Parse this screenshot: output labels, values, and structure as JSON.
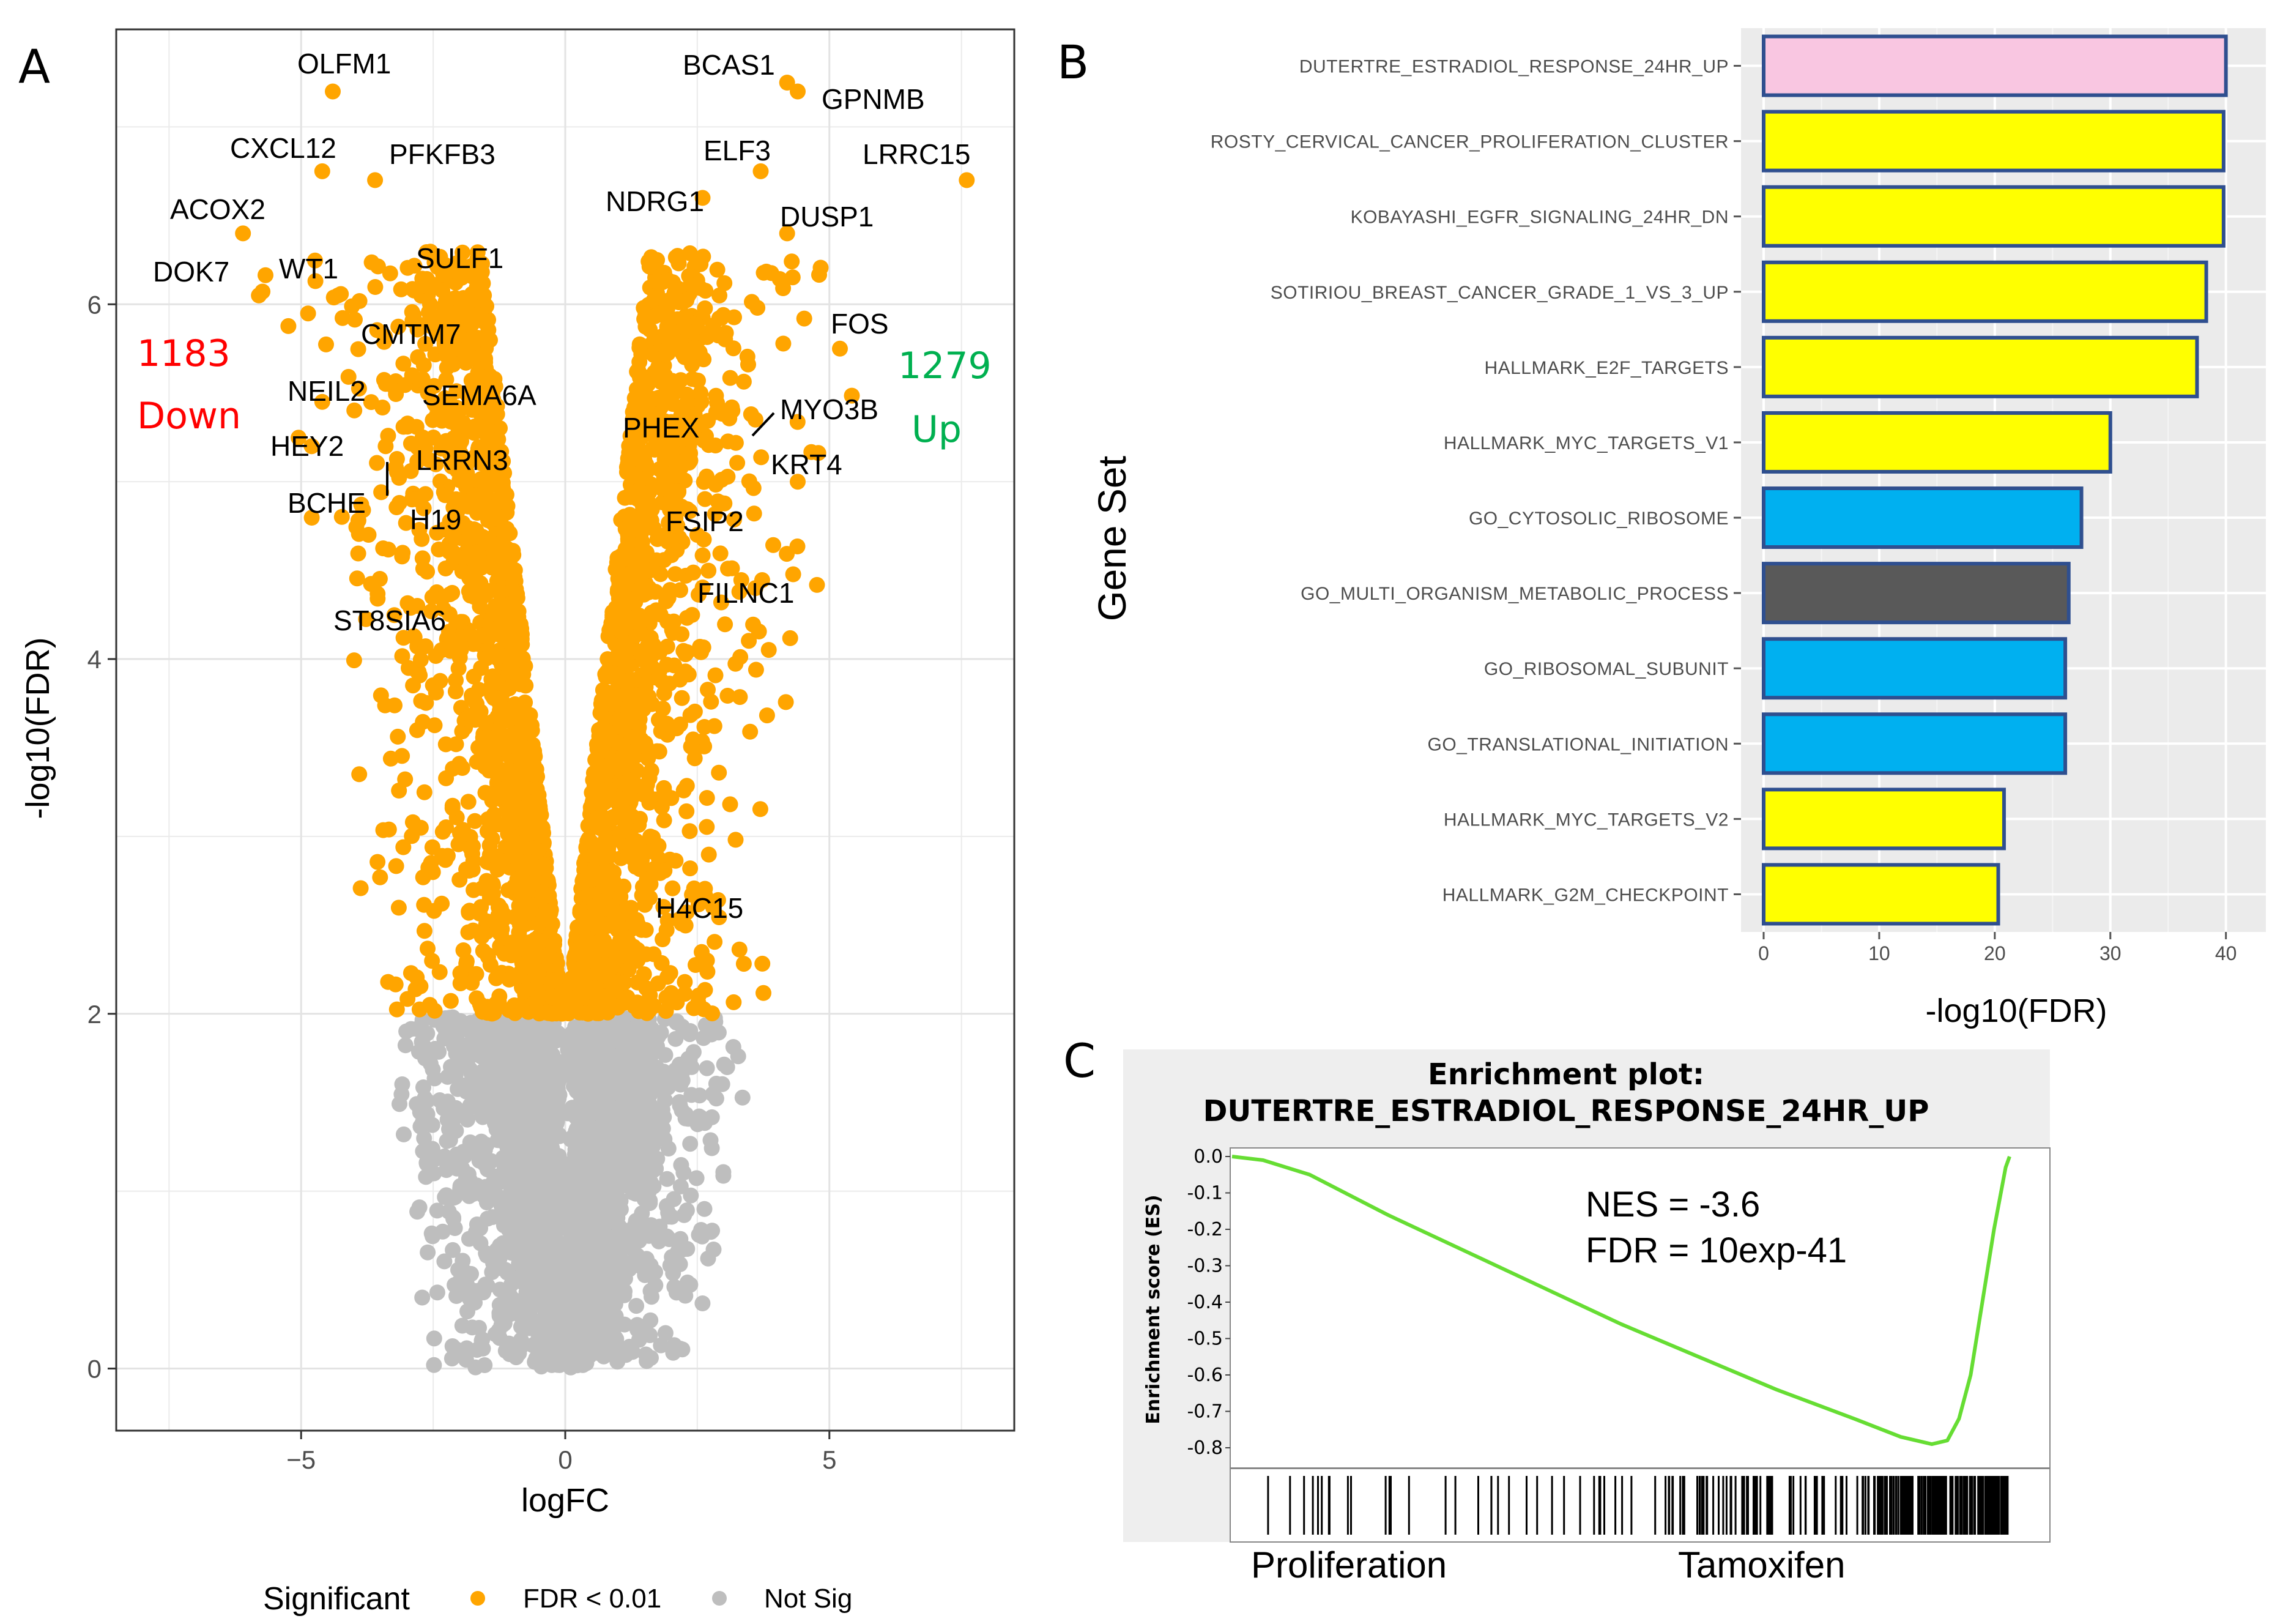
{
  "figure": {
    "panels": {
      "a": "A",
      "b": "B",
      "c": "C"
    }
  },
  "chart_data": [
    {
      "id": "A",
      "type": "scatter",
      "title": "",
      "xlabel": "logFC",
      "ylabel": "-log10(FDR)",
      "xlim": [
        -8.5,
        8.5
      ],
      "ylim": [
        -0.35,
        7.55
      ],
      "xticks": [
        -5,
        0,
        5
      ],
      "xtick_labels": [
        "−5",
        "0",
        "5"
      ],
      "yticks": [
        0,
        2,
        4,
        6
      ],
      "ytick_labels": [
        "0",
        "2",
        "4",
        "6"
      ],
      "grid": true,
      "threshold": 2,
      "colors": {
        "sig": "#ffa500",
        "notsig": "#bebebe"
      },
      "counts": {
        "down_n": "1183",
        "down_text": "Down",
        "up_n": "1279",
        "up_text": "Up"
      },
      "legend": {
        "title": "Significant",
        "position": "bottom",
        "items": [
          {
            "label": "FDR < 0.01",
            "color": "#ffa500"
          },
          {
            "label": "Not Sig",
            "color": "#bebebe"
          }
        ]
      },
      "labeled_genes": [
        {
          "name": "OLFM1",
          "x": -4.4,
          "y": 7.2
        },
        {
          "name": "CXCL12",
          "x": -4.6,
          "y": 6.75
        },
        {
          "name": "PFKFB3",
          "x": -3.6,
          "y": 6.7
        },
        {
          "name": "ACOX2",
          "x": -6.1,
          "y": 6.4
        },
        {
          "name": "DOK7",
          "x": -5.8,
          "y": 6.05
        },
        {
          "name": "WT1",
          "x": -4.3,
          "y": 6.05
        },
        {
          "name": "SULF1",
          "x": -2.6,
          "y": 6.1
        },
        {
          "name": "CMTM7",
          "x": -2.9,
          "y": 5.6
        },
        {
          "name": "NEIL2",
          "x": -4.6,
          "y": 5.45
        },
        {
          "name": "SEMA6A",
          "x": -2.6,
          "y": 5.5
        },
        {
          "name": "HEY2",
          "x": -4.8,
          "y": 5.2
        },
        {
          "name": "LRRN3",
          "x": -2.7,
          "y": 5.25
        },
        {
          "name": "BCHE",
          "x": -3.4,
          "y": 5.2
        },
        {
          "name": "H19",
          "x": -2.9,
          "y": 4.9
        },
        {
          "name": "ST8SIA6",
          "x": -2.8,
          "y": 4.3
        },
        {
          "name": "BCAS1",
          "x": 4.2,
          "y": 7.25
        },
        {
          "name": "GPNMB",
          "x": 4.4,
          "y": 7.2
        },
        {
          "name": "ELF3",
          "x": 3.7,
          "y": 6.75
        },
        {
          "name": "LRRC15",
          "x": 7.6,
          "y": 6.7
        },
        {
          "name": "NDRG1",
          "x": 2.6,
          "y": 6.6
        },
        {
          "name": "DUSP1",
          "x": 4.2,
          "y": 6.4
        },
        {
          "name": "FOS",
          "x": 5.2,
          "y": 5.75
        },
        {
          "name": "PHEX",
          "x": 2.2,
          "y": 5.4
        },
        {
          "name": "MYO3B",
          "x": 3.6,
          "y": 5.35
        },
        {
          "name": "KRT4",
          "x": 4.4,
          "y": 5.0
        },
        {
          "name": "FSIP2",
          "x": 2.5,
          "y": 4.7
        },
        {
          "name": "FILNC1",
          "x": 3.6,
          "y": 4.4
        },
        {
          "name": "H4C15",
          "x": 2.8,
          "y": 2.6
        }
      ]
    },
    {
      "id": "B",
      "type": "bar",
      "orientation": "horizontal",
      "xlabel": "-log10(FDR)",
      "ylabel": "Gene Set",
      "xlim": [
        0,
        41.5
      ],
      "xticks": [
        0,
        10,
        20,
        30,
        40
      ],
      "xtick_labels": [
        "0",
        "10",
        "20",
        "30",
        "40"
      ],
      "grid": true,
      "background": "#ebebeb",
      "categories": [
        "DUTERTRE_ESTRADIOL_RESPONSE_24HR_UP",
        "ROSTY_CERVICAL_CANCER_PROLIFERATION_CLUSTER",
        "KOBAYASHI_EGFR_SIGNALING_24HR_DN",
        "SOTIRIOU_BREAST_CANCER_GRADE_1_VS_3_UP",
        "HALLMARK_E2F_TARGETS",
        "HALLMARK_MYC_TARGETS_V1",
        "GO_CYTOSOLIC_RIBOSOME",
        "GO_MULTI_ORGANISM_METABOLIC_PROCESS",
        "GO_RIBOSOMAL_SUBUNIT",
        "GO_TRANSLATIONAL_INITIATION",
        "HALLMARK_MYC_TARGETS_V2",
        "HALLMARK_G2M_CHECKPOINT"
      ],
      "values": [
        40,
        39.8,
        39.8,
        38.3,
        37.5,
        30,
        27.5,
        26.4,
        26.1,
        26.1,
        20.8,
        20.3
      ],
      "colors": [
        "#f9c6e1",
        "#ffff00",
        "#ffff00",
        "#ffff00",
        "#ffff00",
        "#ffff00",
        "#00b0f0",
        "#595959",
        "#00b0f0",
        "#00b0f0",
        "#ffff00",
        "#ffff00"
      ]
    },
    {
      "id": "C",
      "type": "line",
      "title": "Enrichment plot:",
      "subtitle": "DUTERTRE_ESTRADIOL_RESPONSE_24HR_UP",
      "ylabel": "Enrichment score (ES)",
      "xlim": [
        0,
        1
      ],
      "ylim": [
        -0.85,
        0.02
      ],
      "yticks": [
        0,
        -0.1,
        -0.2,
        -0.3,
        -0.4,
        -0.5,
        -0.6,
        -0.7,
        -0.8
      ],
      "ytick_labels": [
        "0.0",
        "-0.1",
        "-0.2",
        "-0.3",
        "-0.4",
        "-0.5",
        "-0.6",
        "-0.7",
        "-0.8"
      ],
      "stat_nes": "NES = -3.6",
      "stat_fdr": "FDR = 10exp-41",
      "left_label": "Proliferation",
      "right_label": "Tamoxifen",
      "line_color": "#66dd33",
      "series": [
        {
          "name": "Running ES",
          "x": [
            0,
            0.04,
            0.1,
            0.2,
            0.3,
            0.4,
            0.5,
            0.6,
            0.7,
            0.8,
            0.86,
            0.9,
            0.92,
            0.935,
            0.95,
            0.965,
            0.98,
            0.995,
            1.0
          ],
          "y": [
            0.0,
            -0.01,
            -0.05,
            -0.16,
            -0.26,
            -0.36,
            -0.46,
            -0.55,
            -0.64,
            -0.72,
            -0.77,
            -0.79,
            -0.78,
            -0.72,
            -0.6,
            -0.4,
            -0.2,
            -0.03,
            0.0
          ]
        }
      ]
    }
  ]
}
